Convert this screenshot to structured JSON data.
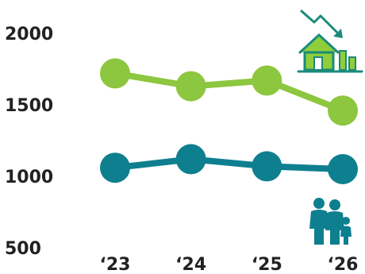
{
  "chart_data": {
    "type": "line",
    "categories": [
      "‘23",
      "‘24",
      "‘25",
      "‘26"
    ],
    "yticks": [
      2000,
      1500,
      1000,
      500
    ],
    "ylim": [
      500,
      2000
    ],
    "series": [
      {
        "values": [
          1720,
          1630,
          1670,
          1460
        ],
        "color": "#8dc63f"
      },
      {
        "values": [
          1060,
          1120,
          1070,
          1050
        ],
        "color": "#0e7f8f"
      }
    ],
    "grid": false,
    "legend": "none"
  },
  "icons": {
    "top_right": "house-price-down-icon",
    "bottom_right": "family-icon"
  }
}
